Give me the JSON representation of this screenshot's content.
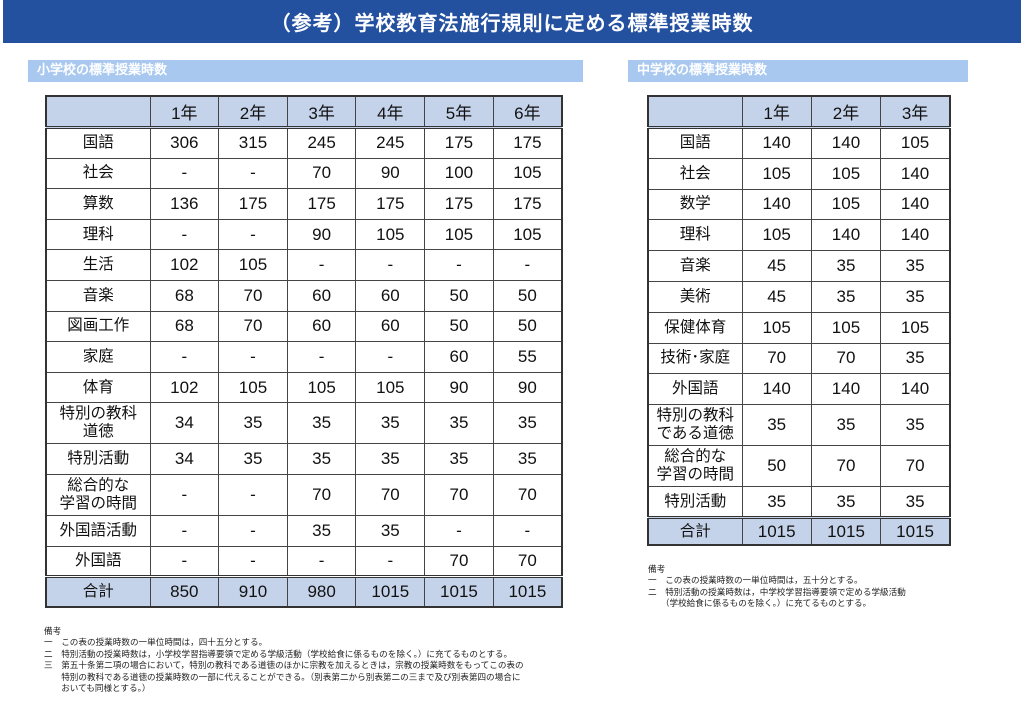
{
  "title": "（参考）学校教育法施行規則に定める標準授業時数",
  "elementary": {
    "heading": "小学校の標準授業時数",
    "columns": [
      "",
      "1年",
      "2年",
      "3年",
      "4年",
      "5年",
      "6年"
    ],
    "rows": [
      {
        "subject": "国語",
        "values": [
          "306",
          "315",
          "245",
          "245",
          "175",
          "175"
        ]
      },
      {
        "subject": "社会",
        "values": [
          "-",
          "-",
          "70",
          "90",
          "100",
          "105"
        ]
      },
      {
        "subject": "算数",
        "values": [
          "136",
          "175",
          "175",
          "175",
          "175",
          "175"
        ]
      },
      {
        "subject": "理科",
        "values": [
          "-",
          "-",
          "90",
          "105",
          "105",
          "105"
        ]
      },
      {
        "subject": "生活",
        "values": [
          "102",
          "105",
          "-",
          "-",
          "-",
          "-"
        ]
      },
      {
        "subject": "音楽",
        "values": [
          "68",
          "70",
          "60",
          "60",
          "50",
          "50"
        ]
      },
      {
        "subject": "図画工作",
        "values": [
          "68",
          "70",
          "60",
          "60",
          "50",
          "50"
        ]
      },
      {
        "subject": "家庭",
        "values": [
          "-",
          "-",
          "-",
          "-",
          "60",
          "55"
        ]
      },
      {
        "subject": "体育",
        "values": [
          "102",
          "105",
          "105",
          "105",
          "90",
          "90"
        ]
      },
      {
        "subject": [
          "特別の教科",
          "道徳"
        ],
        "values": [
          "34",
          "35",
          "35",
          "35",
          "35",
          "35"
        ]
      },
      {
        "subject": "特別活動",
        "values": [
          "34",
          "35",
          "35",
          "35",
          "35",
          "35"
        ]
      },
      {
        "subject": [
          "総合的な",
          "学習の時間"
        ],
        "values": [
          "-",
          "-",
          "70",
          "70",
          "70",
          "70"
        ]
      },
      {
        "subject": "外国語活動",
        "values": [
          "-",
          "-",
          "35",
          "35",
          "-",
          "-"
        ]
      },
      {
        "subject": "外国語",
        "values": [
          "-",
          "-",
          "-",
          "-",
          "70",
          "70"
        ]
      }
    ],
    "total": {
      "subject": "合計",
      "values": [
        "850",
        "910",
        "980",
        "1015",
        "1015",
        "1015"
      ]
    },
    "notes": [
      "備考",
      "一　この表の授業時数の一単位時間は，四十五分とする。",
      "二　特別活動の授業時数は，小学校学習指導要領で定める学級活動（学校給食に係るものを除く。）に充てるものとする。",
      "三　第五十条第二項の場合において，特別の教科である道徳のほかに宗教を加えるときは，宗教の授業時数をもってこの表の",
      "　　特別の教科である道徳の授業時数の一部に代えることができる。（別表第二から別表第二の三まで及び別表第四の場合に",
      "　　おいても同様とする。）"
    ]
  },
  "junior_high": {
    "heading": "中学校の標準授業時数",
    "columns": [
      "",
      "1年",
      "2年",
      "3年"
    ],
    "rows": [
      {
        "subject": "国語",
        "values": [
          "140",
          "140",
          "105"
        ]
      },
      {
        "subject": "社会",
        "values": [
          "105",
          "105",
          "140"
        ]
      },
      {
        "subject": "数学",
        "values": [
          "140",
          "105",
          "140"
        ]
      },
      {
        "subject": "理科",
        "values": [
          "105",
          "140",
          "140"
        ]
      },
      {
        "subject": "音楽",
        "values": [
          "45",
          "35",
          "35"
        ]
      },
      {
        "subject": "美術",
        "values": [
          "45",
          "35",
          "35"
        ]
      },
      {
        "subject": "保健体育",
        "values": [
          "105",
          "105",
          "105"
        ]
      },
      {
        "subject": "技術･家庭",
        "values": [
          "70",
          "70",
          "35"
        ]
      },
      {
        "subject": "外国語",
        "values": [
          "140",
          "140",
          "140"
        ]
      },
      {
        "subject": [
          "特別の教科",
          "である道徳"
        ],
        "values": [
          "35",
          "35",
          "35"
        ]
      },
      {
        "subject": [
          "総合的な",
          "学習の時間"
        ],
        "values": [
          "50",
          "70",
          "70"
        ]
      },
      {
        "subject": "特別活動",
        "values": [
          "35",
          "35",
          "35"
        ]
      }
    ],
    "total": {
      "subject": "合計",
      "values": [
        "1015",
        "1015",
        "1015"
      ]
    },
    "notes": [
      "備考",
      "一　この表の授業時数の一単位時間は，五十分とする。",
      "二　特別活動の授業時数は，中学校学習指導要領で定める学級活動",
      "　　（学校給食に係るものを除く。）に充てるものとする。"
    ]
  }
}
